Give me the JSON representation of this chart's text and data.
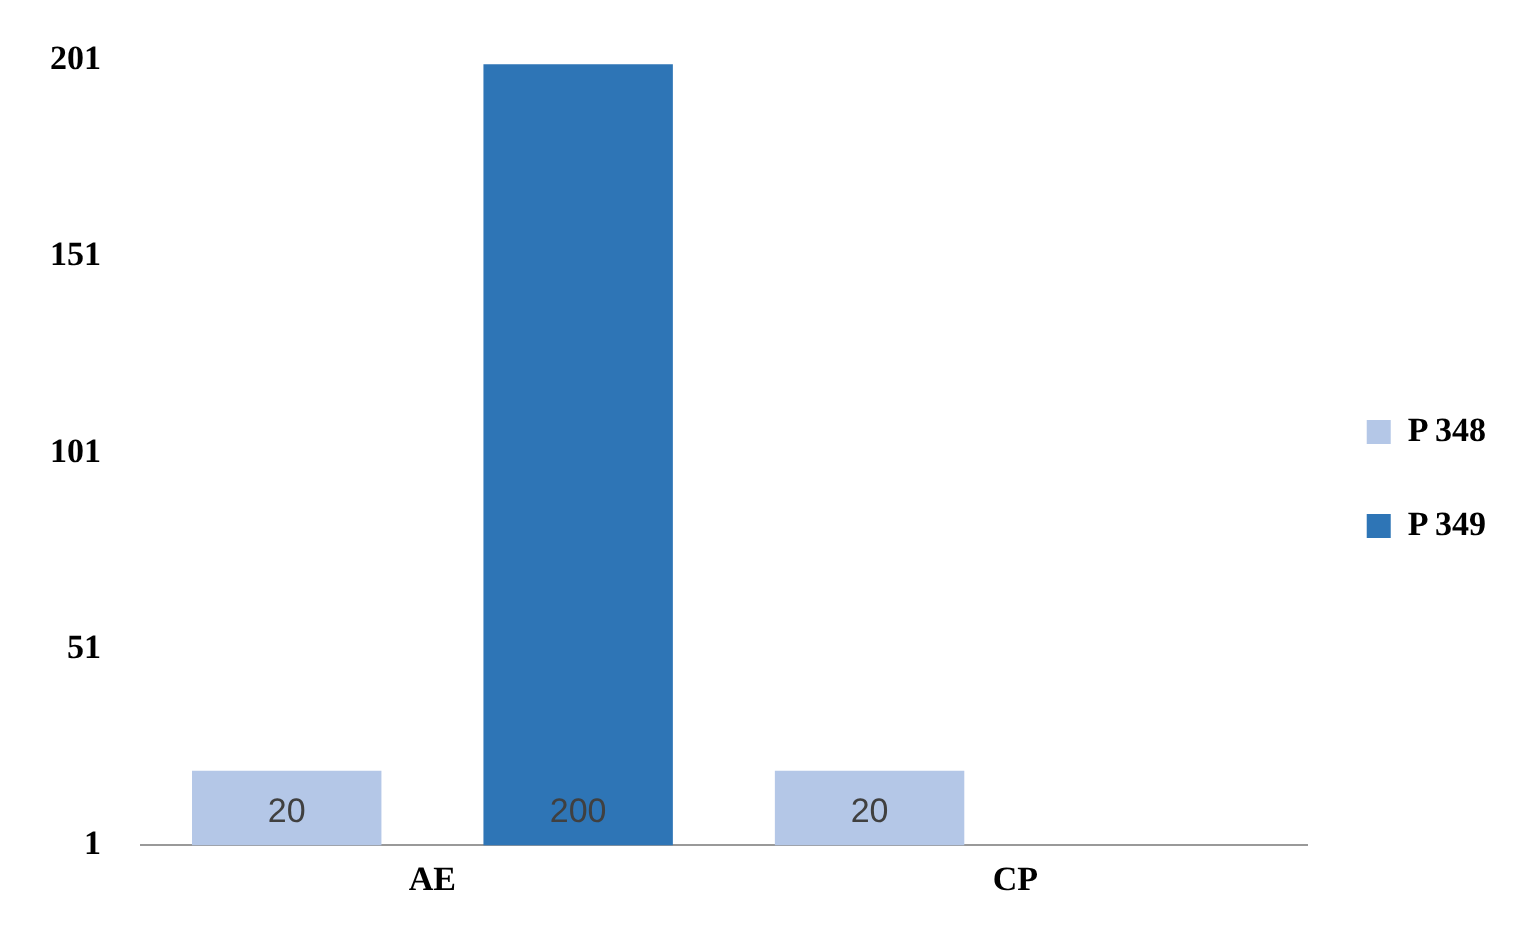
{
  "chart_data": {
    "type": "bar",
    "categories": [
      "AE",
      "CP"
    ],
    "series": [
      {
        "name": "P 348",
        "color": "#b4c7e7",
        "values": [
          20,
          20
        ]
      },
      {
        "name": "P 349",
        "color": "#2e75b6",
        "values": [
          200,
          null
        ]
      }
    ],
    "ylim": [
      1,
      201
    ],
    "yticks": [
      1,
      51,
      101,
      151,
      201
    ],
    "grid": false,
    "legend": "right",
    "data_labels": true
  }
}
